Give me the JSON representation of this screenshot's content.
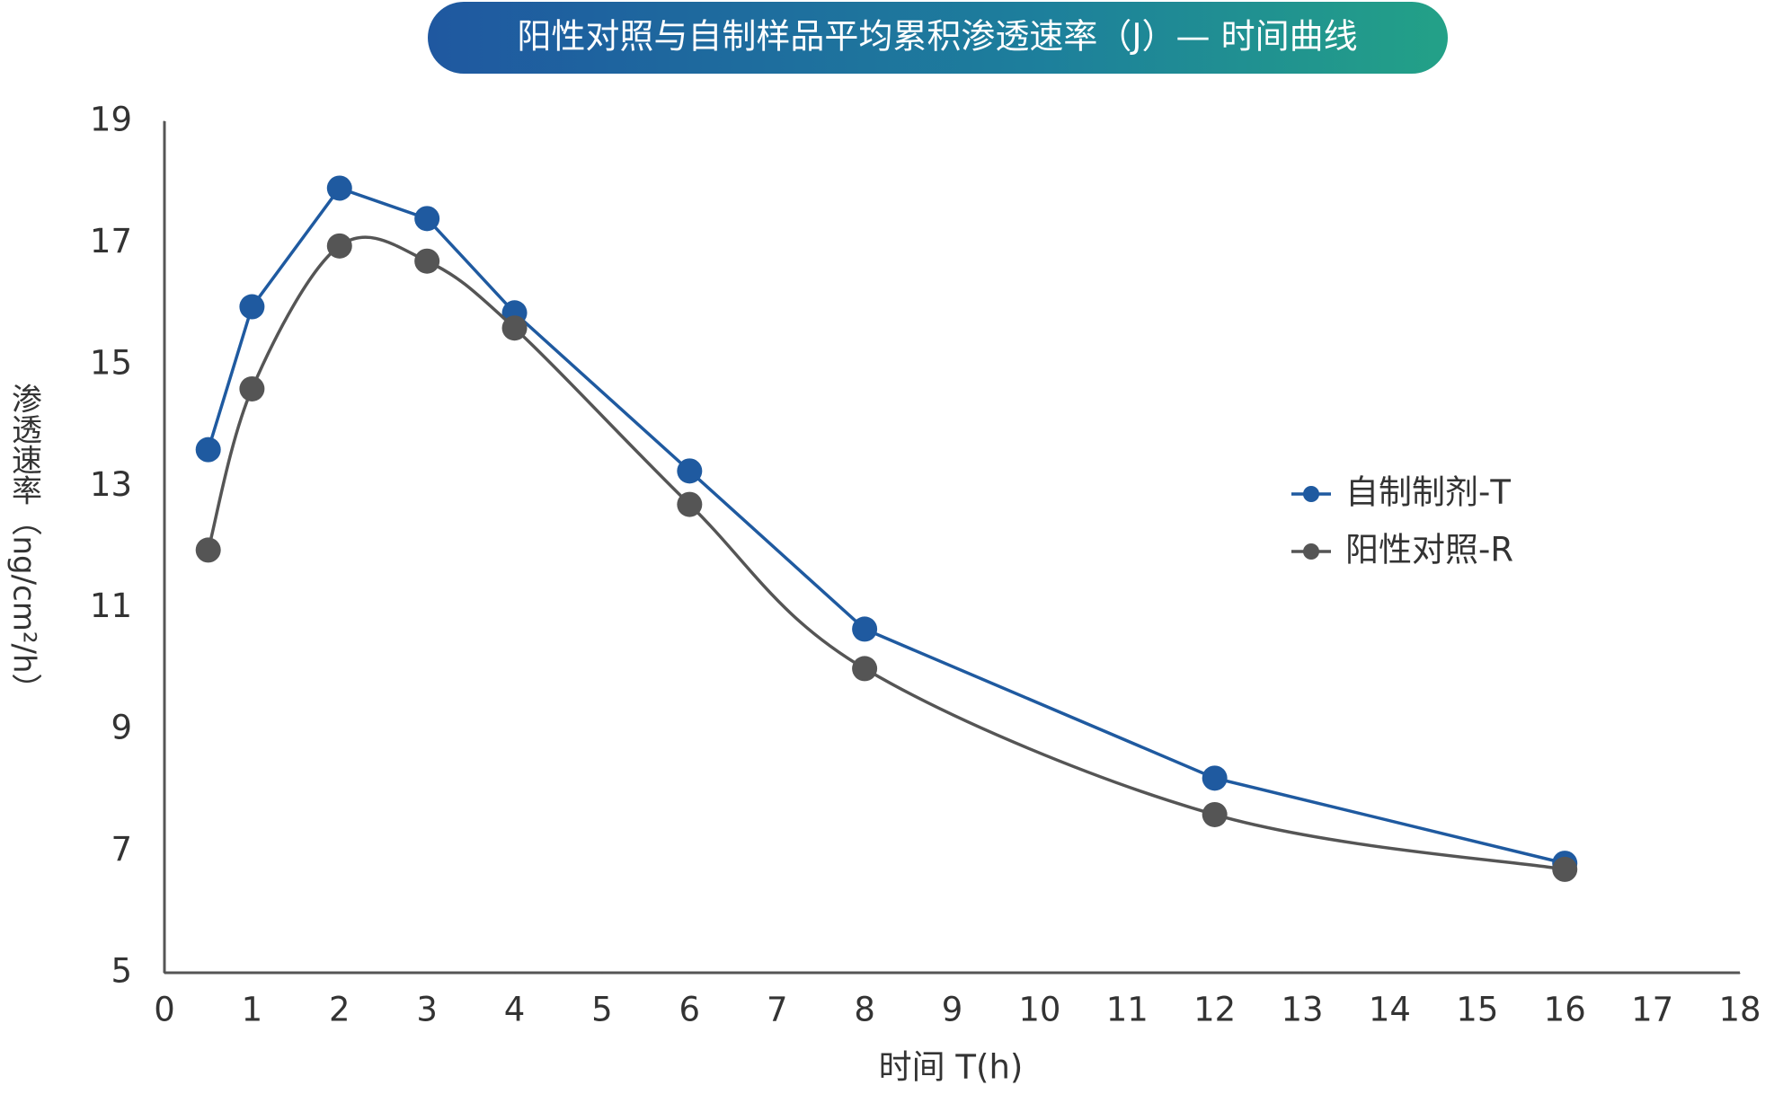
{
  "chart_data": {
    "type": "line",
    "title": "阳性对照与自制样品平均累积渗透速率（J）— 时间曲线",
    "x_label": "时间 T(h)",
    "y_label": "渗透速率（ng/cm²/h）",
    "x": [
      0.5,
      1,
      2,
      3,
      4,
      6,
      8,
      12,
      16
    ],
    "series": [
      {
        "name": "自制制剂-T",
        "color": "#1f5aa0",
        "smooth": false,
        "values": [
          13.6,
          15.95,
          17.9,
          17.4,
          15.85,
          13.25,
          10.65,
          8.2,
          6.8
        ]
      },
      {
        "name": "阳性对照-R",
        "color": "#555555",
        "smooth": true,
        "values": [
          11.95,
          14.6,
          16.95,
          16.7,
          15.6,
          12.7,
          10.0,
          7.6,
          6.7
        ]
      }
    ],
    "xlim": [
      0,
      18
    ],
    "xticks": [
      0,
      1,
      2,
      3,
      4,
      5,
      6,
      7,
      8,
      9,
      10,
      11,
      12,
      13,
      14,
      15,
      16,
      17,
      18
    ],
    "ylim": [
      5,
      19
    ],
    "yticks": [
      5,
      7,
      9,
      11,
      13,
      15,
      17,
      19
    ],
    "grid": false,
    "legend": "right"
  }
}
